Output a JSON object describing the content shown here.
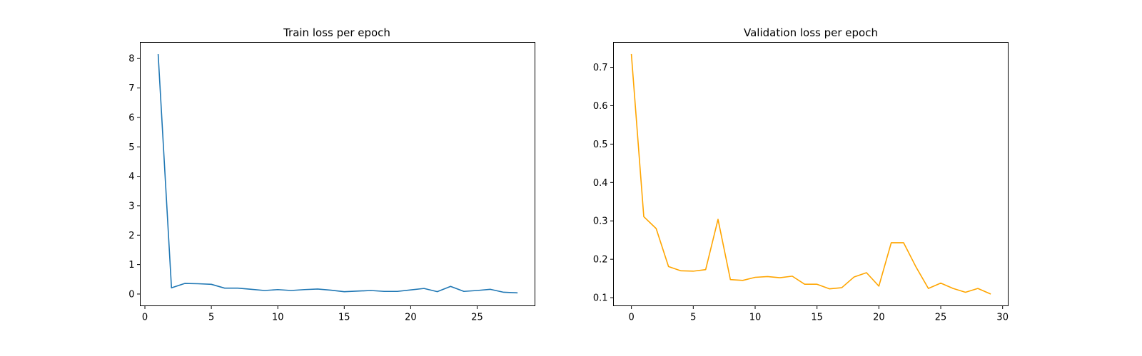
{
  "chart_data": [
    {
      "type": "line",
      "title": "Train loss per epoch",
      "xlabel": "",
      "ylabel": "",
      "xlim": [
        -0.35,
        29.35
      ],
      "ylim": [
        -0.4,
        8.55
      ],
      "xticks": [
        0,
        5,
        10,
        15,
        20,
        25
      ],
      "yticks": [
        0,
        1,
        2,
        3,
        4,
        5,
        6,
        7,
        8
      ],
      "grid": false,
      "color": "#1f77b4",
      "series": [
        {
          "x": [
            1,
            2,
            3,
            4,
            5,
            6,
            7,
            8,
            9,
            10,
            11,
            12,
            13,
            14,
            15,
            16,
            17,
            18,
            19,
            20,
            21,
            22,
            23,
            24,
            25,
            26,
            27,
            28
          ],
          "values": [
            8.13,
            0.21,
            0.36,
            0.35,
            0.33,
            0.2,
            0.2,
            0.16,
            0.12,
            0.15,
            0.12,
            0.15,
            0.17,
            0.13,
            0.08,
            0.1,
            0.12,
            0.09,
            0.09,
            0.14,
            0.19,
            0.08,
            0.26,
            0.09,
            0.12,
            0.16,
            0.06,
            0.04
          ]
        }
      ]
    },
    {
      "type": "line",
      "title": "Validation loss per epoch",
      "xlabel": "",
      "ylabel": "",
      "xlim": [
        -1.45,
        30.45
      ],
      "ylim": [
        0.0788,
        0.765
      ],
      "xticks": [
        0,
        5,
        10,
        15,
        20,
        25,
        30
      ],
      "yticks": [
        0.1,
        0.2,
        0.3,
        0.4,
        0.5,
        0.6,
        0.7
      ],
      "grid": false,
      "color": "#ffa500",
      "series": [
        {
          "x": [
            0,
            1,
            2,
            3,
            4,
            5,
            6,
            7,
            8,
            9,
            10,
            11,
            12,
            13,
            14,
            15,
            16,
            17,
            18,
            19,
            20,
            21,
            22,
            23,
            24,
            25,
            26,
            27,
            28,
            29
          ],
          "values": [
            0.733,
            0.311,
            0.28,
            0.181,
            0.17,
            0.169,
            0.173,
            0.304,
            0.147,
            0.145,
            0.153,
            0.155,
            0.152,
            0.156,
            0.135,
            0.135,
            0.123,
            0.126,
            0.154,
            0.165,
            0.13,
            0.243,
            0.243,
            0.18,
            0.124,
            0.138,
            0.124,
            0.114,
            0.124,
            0.11
          ]
        }
      ]
    }
  ]
}
